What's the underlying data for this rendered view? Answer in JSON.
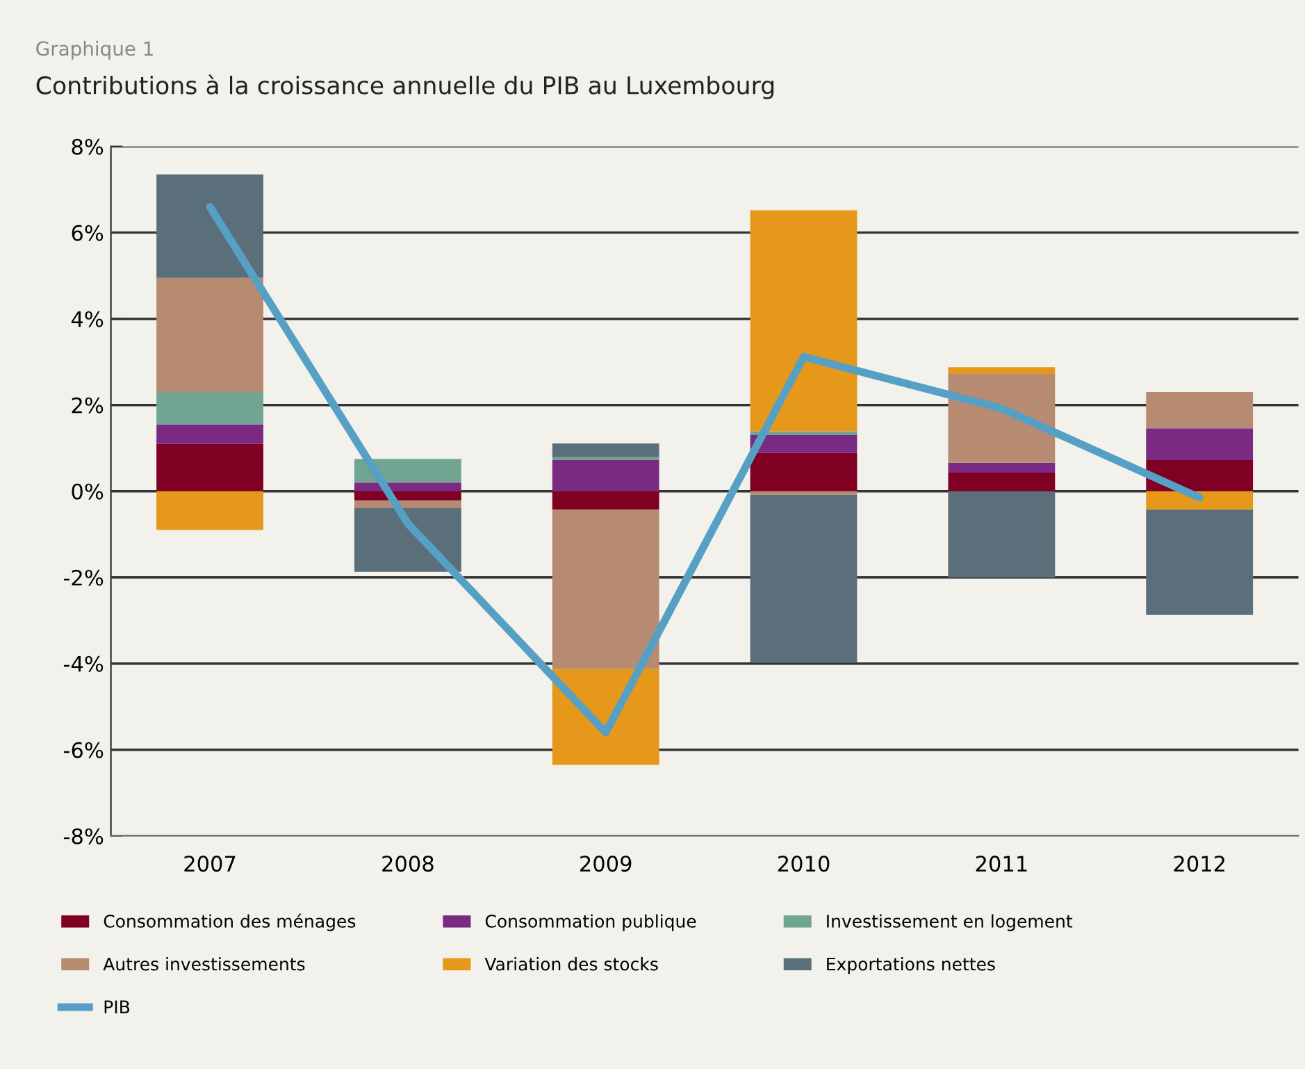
{
  "chart_data": {
    "type": "bar",
    "stacked": true,
    "subtitle": "Graphique 1",
    "title": "Contributions à la croissance annuelle du PIB au Luxembourg",
    "categories": [
      "2007",
      "2008",
      "2009",
      "2010",
      "2011",
      "2012"
    ],
    "series": [
      {
        "name": "Consommation des ménages",
        "color": "#7f0022",
        "values": [
          1.1,
          -0.22,
          -0.43,
          0.89,
          0.43,
          0.72
        ]
      },
      {
        "name": "Consommation publique",
        "color": "#7a2a82",
        "values": [
          0.45,
          0.2,
          0.72,
          0.41,
          0.23,
          0.74
        ]
      },
      {
        "name": "Investissement en logement",
        "color": "#70a592",
        "values": [
          0.75,
          0.55,
          0.07,
          0.09,
          0,
          0
        ]
      },
      {
        "name": "Autres investissements",
        "color": "#b78b72",
        "values": [
          2.65,
          -0.17,
          -3.7,
          -0.08,
          2.06,
          0.84
        ]
      },
      {
        "name": "Variation des stocks",
        "color": "#e6981a",
        "values": [
          -0.9,
          0,
          -2.22,
          5.13,
          0.16,
          -0.43
        ]
      },
      {
        "name": "Exportations nettes",
        "color": "#5b6f7b",
        "values": [
          2.4,
          -1.48,
          0.32,
          -3.9,
          -2.0,
          -2.44
        ]
      },
      {
        "name": "PIB",
        "type": "line",
        "color": "#55a0c4",
        "values": [
          6.6,
          -0.75,
          -5.6,
          3.12,
          1.92,
          -0.15
        ]
      }
    ],
    "ylim": [
      -8,
      8
    ],
    "yticks": [
      {
        "value": -8,
        "label": "-8%"
      },
      {
        "value": -6,
        "label": "-6%"
      },
      {
        "value": -4,
        "label": "-4%"
      },
      {
        "value": -2,
        "label": "-2%"
      },
      {
        "value": 0,
        "label": "0%"
      },
      {
        "value": 2,
        "label": "2%"
      },
      {
        "value": 4,
        "label": "4%"
      },
      {
        "value": 6,
        "label": "6%"
      },
      {
        "value": 8,
        "label": "8%"
      }
    ],
    "grid": "y",
    "legend": "bottom",
    "marker": "none",
    "line_style": "solid"
  }
}
